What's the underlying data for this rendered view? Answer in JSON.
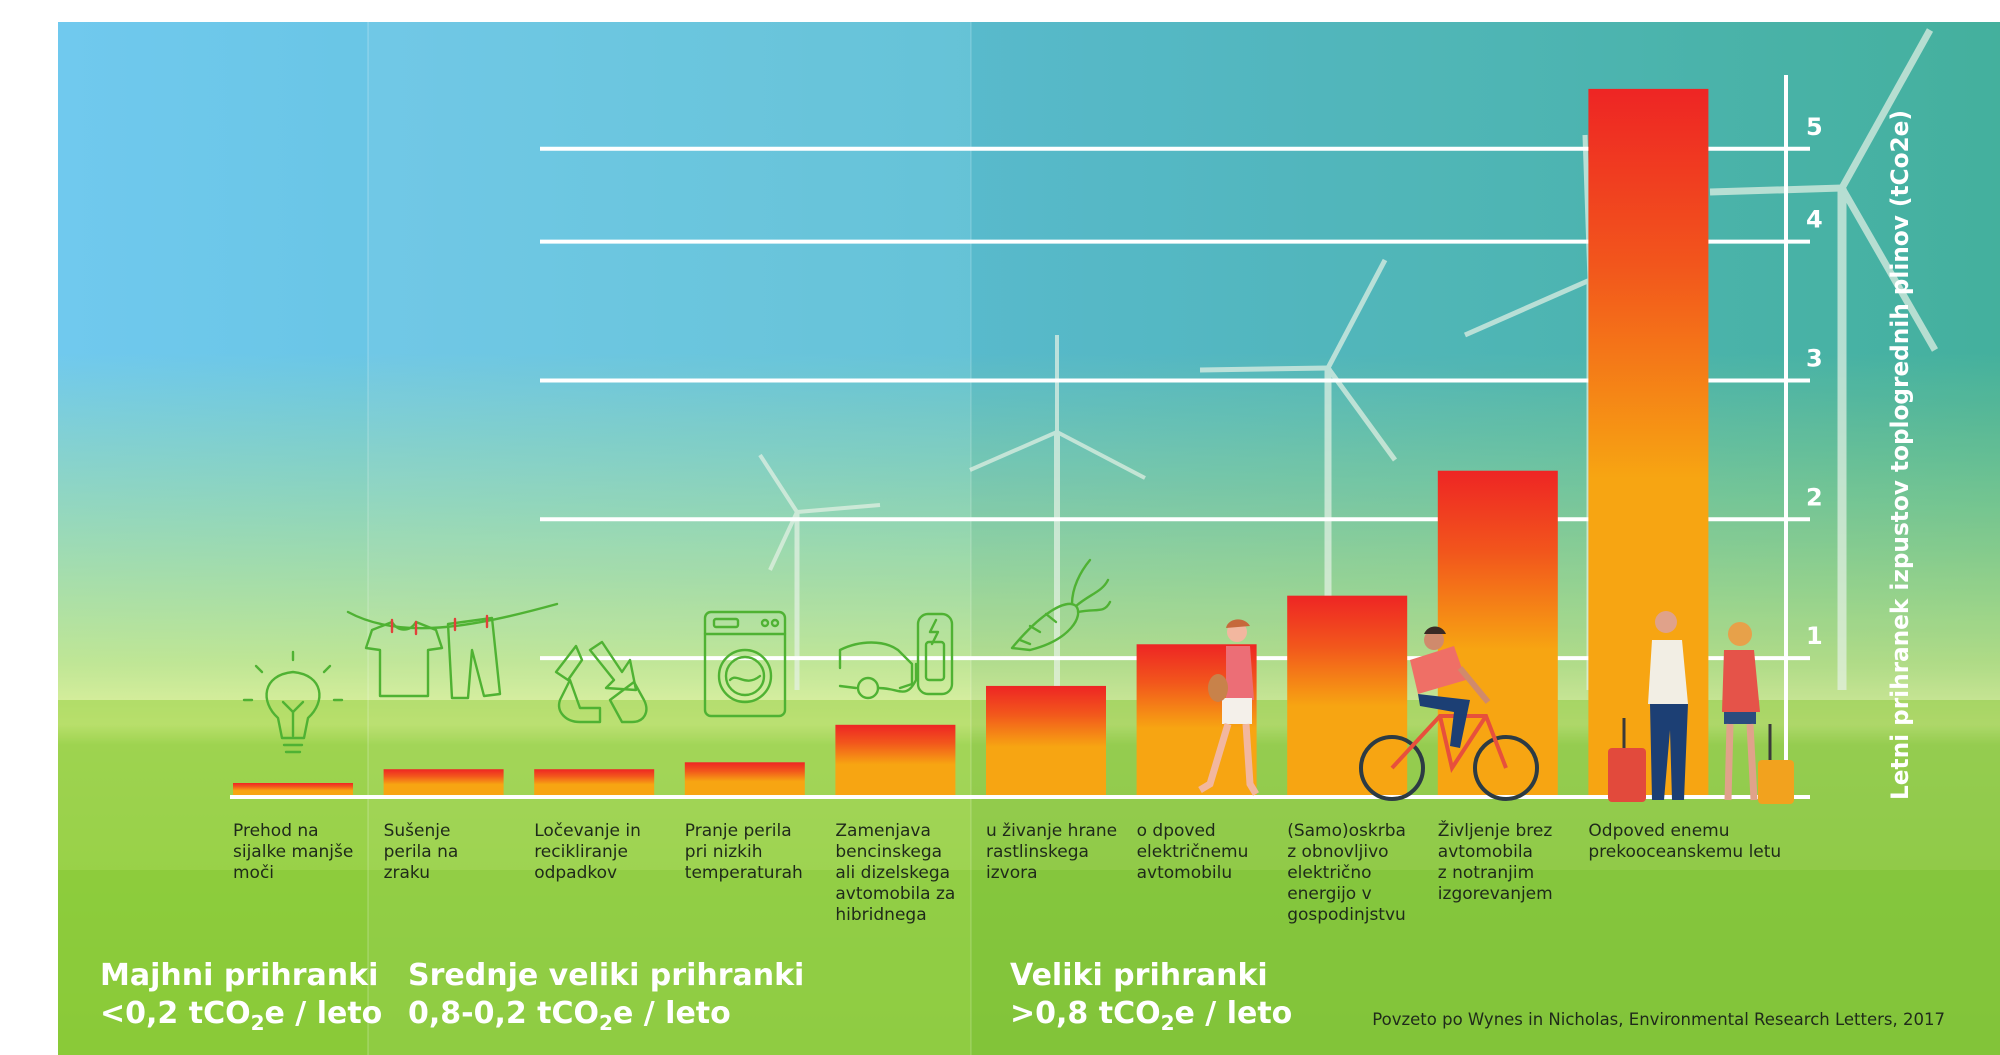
{
  "chart_data": {
    "type": "bar",
    "ylabel": "Letni prihranek izpustov toplogrednih plinov (tCo2e)",
    "yticks": [
      "1",
      "2",
      "3",
      "4",
      "5"
    ],
    "ylim": [
      0,
      5.2
    ],
    "grid": true,
    "categories": [
      [
        "Prehod na",
        "sijalke manjše",
        "moči"
      ],
      [
        "Sušenje",
        "perila na",
        "zraku"
      ],
      [
        "Ločevanje in",
        "recikliranje",
        "odpadkov"
      ],
      [
        "Pranje perila",
        "pri nizkih",
        "temperaturah"
      ],
      [
        "Zamenjava",
        "bencinskega",
        "ali dizelskega",
        "avtomobila za",
        "hibridnega"
      ],
      [
        "u živanje hrane",
        "rastlinskega",
        "izvora"
      ],
      [
        "o dpoved",
        "električnemu",
        "avtomobilu"
      ],
      [
        "(Samo)oskrba",
        "z obnovljivo",
        "električno",
        "energijo v",
        "gospodinjstvu"
      ],
      [
        "Življenje brez",
        "avtomobila",
        "z notranjim",
        "izgorevanjem"
      ],
      [
        "Odpoved enemu",
        "prekooceanskemu letu"
      ]
    ],
    "values": [
      0.1,
      0.2,
      0.2,
      0.25,
      0.52,
      0.8,
      1.1,
      1.45,
      2.35,
      5.1
    ]
  },
  "sections": [
    {
      "line1": "Majhni prihranki",
      "line2_prefix": "<0,2 tCO",
      "line2_sub": "2",
      "line2_suffix": "e / leto"
    },
    {
      "line1": "Srednje veliki prihranki",
      "line2_prefix": "0,8-0,2 tCO",
      "line2_sub": "2",
      "line2_suffix": "e / leto"
    },
    {
      "line1": "Veliki prihranki",
      "line2_prefix": ">0,8 tCO",
      "line2_sub": "2",
      "line2_suffix": "e / leto"
    }
  ],
  "source": "Povzeto po Wynes in Nicholas, Environmental Research Letters, 2017",
  "colors": {
    "bar_top": "#ee2524",
    "bar_bottom": "#f7a512",
    "icon": "#4fb233",
    "sky_left": "#6ec9ef",
    "sky_right": "#4bb7a7",
    "grass": "#8ccc3a"
  },
  "icons": [
    "lightbulb-icon",
    "laundry-line-icon",
    "recycle-icon",
    "washing-machine-icon",
    "hybrid-car-charging-icon",
    "carrot-icon"
  ]
}
